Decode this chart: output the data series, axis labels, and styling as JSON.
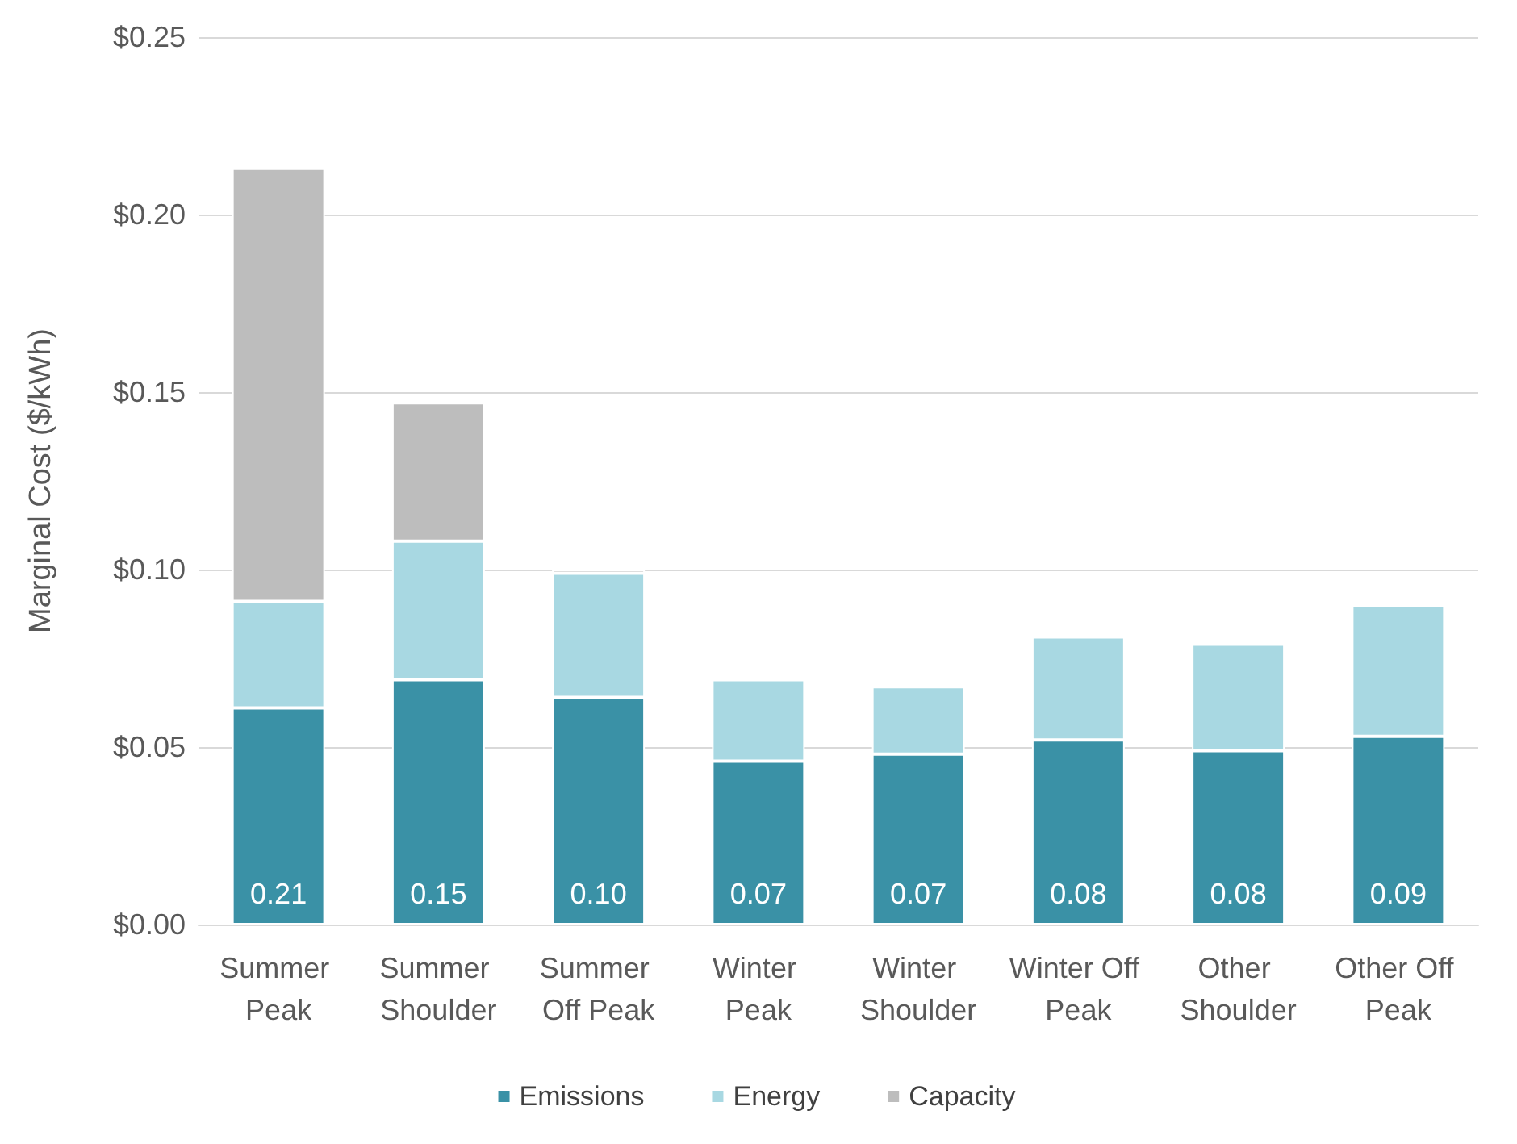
{
  "chart_data": {
    "type": "bar",
    "stacked": true,
    "ylabel": "Marginal Cost ($/kWh)",
    "categories": [
      "Summer Peak",
      "Summer Shoulder",
      "Summer Off Peak",
      "Winter Peak",
      "Winter Shoulder",
      "Winter Off Peak",
      "Other Shoulder",
      "Other Off Peak"
    ],
    "series": [
      {
        "name": "Emissions",
        "color": "#3a91a6",
        "values": [
          0.061,
          0.069,
          0.064,
          0.046,
          0.048,
          0.052,
          0.049,
          0.053
        ]
      },
      {
        "name": "Energy",
        "color": "#a8d8e2",
        "values": [
          0.03,
          0.039,
          0.035,
          0.023,
          0.019,
          0.029,
          0.03,
          0.037
        ]
      },
      {
        "name": "Capacity",
        "color": "#bdbdbd",
        "values": [
          0.122,
          0.039,
          0.001,
          null,
          null,
          null,
          null,
          null
        ]
      }
    ],
    "totals": [
      "0.21",
      "0.15",
      "0.10",
      "0.07",
      "0.07",
      "0.08",
      "0.08",
      "0.09"
    ],
    "ylim": [
      0,
      0.25
    ],
    "yticks": [
      {
        "value": 0,
        "label": "$0.00"
      },
      {
        "value": 0.05,
        "label": "$0.05"
      },
      {
        "value": 0.1,
        "label": "$0.10"
      },
      {
        "value": 0.15,
        "label": "$0.15"
      },
      {
        "value": 0.2,
        "label": "$0.20"
      },
      {
        "value": 0.25,
        "label": "$0.25"
      }
    ],
    "grid": "y",
    "legend": "bottom"
  }
}
